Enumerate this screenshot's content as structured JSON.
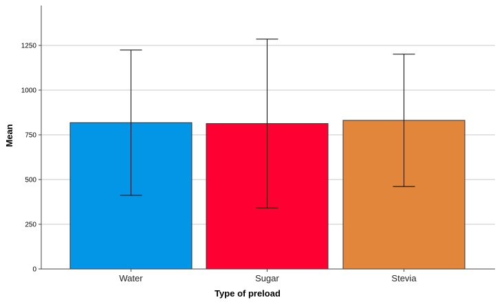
{
  "chart_data": {
    "type": "bar",
    "title": "",
    "xlabel": "Type of preload",
    "ylabel": "Mean",
    "categories": [
      "Water",
      "Sugar",
      "Stevia"
    ],
    "values": [
      818,
      813,
      831
    ],
    "error_bars": {
      "lower": [
        412,
        341,
        461
      ],
      "upper": [
        1224,
        1285,
        1201
      ]
    },
    "colors": [
      "#0396e6",
      "#ff0033",
      "#e1863b"
    ],
    "ylim": [
      0,
      1250
    ],
    "yticks": [
      0,
      250,
      500,
      750,
      1000,
      1250
    ],
    "ytick_labels": [
      "0",
      "250",
      "500",
      "750",
      "1000",
      "1250"
    ],
    "grid": "horizontal",
    "legend": "none"
  }
}
